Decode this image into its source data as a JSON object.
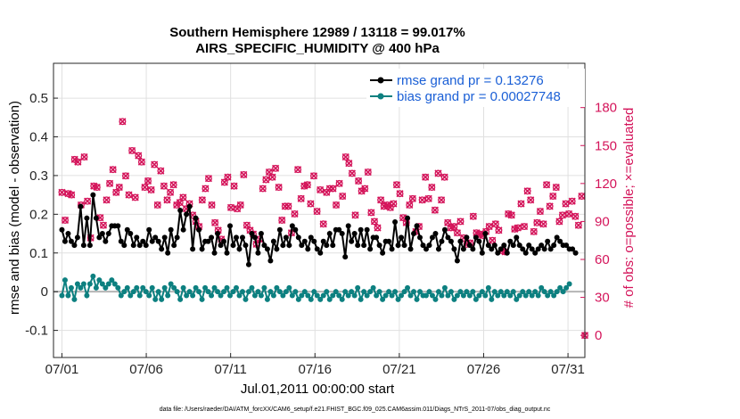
{
  "chart_data": {
    "type": "line",
    "title": "Southern Hemisphere 12989 / 13118 = 99.017%",
    "subtitle": "AIRS_SPECIFIC_HUMIDITY @ 400 hPa",
    "xlabel": "Jul.01,2011 00:00:00 start",
    "ylabel": "rmse and bias (model - observation)",
    "y2label": "# of obs: o=possible; ×=evaluated",
    "footnote": "data file: /Users/raeder/DAI/ATM_forcXX/CAM6_setup/f.e21.FHIST_BGC.f09_025.CAM6assim.011/Diags_NTrS_2011-07/obs_diag_output.nc",
    "xlim": [
      0.5,
      32
    ],
    "ylim": [
      -0.17,
      0.59
    ],
    "y2lim": [
      -17.5,
      215
    ],
    "xticks": [
      1,
      6,
      11,
      16,
      21,
      26,
      31
    ],
    "xtick_labels": [
      "07/01",
      "07/06",
      "07/11",
      "07/16",
      "07/21",
      "07/26",
      "07/31"
    ],
    "yticks": [
      -0.1,
      0,
      0.1,
      0.2,
      0.3,
      0.4,
      0.5
    ],
    "ytick_labels": [
      "-0.1",
      "0",
      "0.1",
      "0.2",
      "0.3",
      "0.4",
      "0.5"
    ],
    "y2ticks": [
      0,
      30,
      60,
      90,
      120,
      150,
      180
    ],
    "y2tick_labels": [
      "0",
      "30",
      "60",
      "90",
      "120",
      "150",
      "180"
    ],
    "grid": true,
    "legend_position": "top-right",
    "colors": {
      "rmse": "#000000",
      "bias": "#0d8080",
      "obs": "#d4145a",
      "zero": "#b4b4b4",
      "grid": "#e0e0e0",
      "legend_text": "#1a5fd6"
    },
    "series": [
      {
        "name": "rmse grand pr = 0.13276",
        "values": [
          0.16,
          0.13,
          0.15,
          0.13,
          0.12,
          0.14,
          0.22,
          0.12,
          0.19,
          0.12,
          0.25,
          0.19,
          0.14,
          0.15,
          0.13,
          0.15,
          0.17,
          0.17,
          0.17,
          0.13,
          0.12,
          0.16,
          0.15,
          0.12,
          0.14,
          0.12,
          0.13,
          0.12,
          0.16,
          0.13,
          0.14,
          0.13,
          0.11,
          0.14,
          0.1,
          0.16,
          0.12,
          0.14,
          0.21,
          0.16,
          0.2,
          0.22,
          0.11,
          0.19,
          0.16,
          0.11,
          0.13,
          0.13,
          0.14,
          0.1,
          0.15,
          0.12,
          0.13,
          0.1,
          0.17,
          0.12,
          0.14,
          0.11,
          0.14,
          0.12,
          0.07,
          0.15,
          0.14,
          0.1,
          0.15,
          0.12,
          0.11,
          0.08,
          0.13,
          0.11,
          0.16,
          0.12,
          0.14,
          0.12,
          0.17,
          0.16,
          0.14,
          0.12,
          0.13,
          0.11,
          0.14,
          0.13,
          0.11,
          0.1,
          0.13,
          0.12,
          0.15,
          0.12,
          0.16,
          0.16,
          0.15,
          0.09,
          0.17,
          0.13,
          0.15,
          0.12,
          0.16,
          0.12,
          0.16,
          0.11,
          0.14,
          0.14,
          0.12,
          0.1,
          0.13,
          0.13,
          0.11,
          0.18,
          0.12,
          0.14,
          0.12,
          0.19,
          0.11,
          0.15,
          0.17,
          0.14,
          0.12,
          0.11,
          0.12,
          0.14,
          0.15,
          0.11,
          0.13,
          0.16,
          0.14,
          0.13,
          0.11,
          0.08,
          0.13,
          0.11,
          0.14,
          0.12,
          0.11,
          0.14,
          0.13,
          0.1,
          0.15,
          0.12,
          0.11,
          0.12,
          0.1,
          0.11,
          0.12,
          0.1,
          0.13,
          0.12,
          0.14,
          0.12,
          0.11,
          0.1,
          0.12,
          0.11,
          0.1,
          0.11,
          0.12,
          0.11,
          0.13,
          0.11,
          0.12,
          0.14,
          0.13,
          0.12,
          0.12,
          0.11,
          0.11,
          0.1
        ]
      },
      {
        "name": "bias grand pr = 0.00027748",
        "values": [
          -0.01,
          0.03,
          -0.01,
          0.01,
          -0.02,
          0.02,
          0.01,
          0.02,
          -0.01,
          0.02,
          0.04,
          0.01,
          0.03,
          0.02,
          0.01,
          0.02,
          0.03,
          0.02,
          0.01,
          -0.01,
          0.0,
          0.01,
          -0.01,
          0.0,
          0.01,
          -0.01,
          0.01,
          0.0,
          -0.01,
          0.01,
          -0.02,
          0.0,
          -0.02,
          0.01,
          -0.01,
          0.02,
          0.01,
          0.0,
          -0.02,
          0.01,
          -0.01,
          0.0,
          -0.01,
          0.01,
          0.0,
          -0.02,
          0.01,
          0.0,
          -0.01,
          0.01,
          0.0,
          -0.01,
          0.0,
          0.01,
          -0.01,
          0.0,
          0.01,
          -0.01,
          0.0,
          -0.02,
          0.0,
          0.01,
          -0.01,
          0.0,
          -0.01,
          0.01,
          -0.02,
          0.0,
          -0.01,
          0.01,
          0.0,
          -0.01,
          0.0,
          0.01,
          -0.01,
          0.0,
          -0.02,
          -0.01,
          0.0,
          -0.01,
          -0.02,
          0.0,
          -0.01,
          -0.02,
          -0.01,
          0.0,
          -0.02,
          -0.01,
          0.0,
          -0.01,
          -0.02,
          0.0,
          -0.01,
          0.0,
          -0.01,
          0.01,
          -0.02,
          0.0,
          -0.01,
          0.0,
          0.01,
          -0.01,
          0.0,
          -0.02,
          -0.01,
          0.0,
          -0.01,
          0.0,
          -0.02,
          -0.01,
          0.0,
          0.01,
          -0.01,
          0.0,
          -0.02,
          0.0,
          -0.01,
          -0.01,
          0.0,
          -0.01,
          -0.02,
          0.0,
          -0.01,
          0.01,
          -0.01,
          0.0,
          -0.02,
          -0.01,
          0.0,
          -0.01,
          0.0,
          -0.01,
          0.0,
          -0.02,
          -0.01,
          0.0,
          -0.01,
          0.01,
          -0.02,
          0.0,
          -0.01,
          0.0,
          -0.01,
          0.0,
          -0.01,
          0.0,
          -0.02,
          -0.01,
          0.0,
          -0.01,
          0.0,
          -0.01,
          0.0,
          -0.01,
          0.01,
          0.0,
          -0.01,
          0.0,
          -0.01,
          0.0,
          0.01,
          0.0,
          0.01,
          0.02
        ]
      }
    ],
    "obs_counts": [
      113,
      91,
      112,
      111,
      139,
      137,
      103,
      141,
      106,
      77,
      118,
      117,
      93,
      87,
      107,
      120,
      131,
      113,
      117,
      169,
      126,
      111,
      146,
      109,
      142,
      137,
      117,
      122,
      115,
      135,
      103,
      130,
      118,
      107,
      113,
      119,
      103,
      105,
      109,
      100,
      104,
      95,
      90,
      86,
      107,
      116,
      124,
      103,
      89,
      83,
      76,
      121,
      125,
      101,
      118,
      100,
      103,
      127,
      87,
      83,
      80,
      72,
      76,
      116,
      123,
      129,
      125,
      132,
      117,
      91,
      102,
      102,
      81,
      96,
      131,
      108,
      118,
      119,
      104,
      126,
      98,
      115,
      88,
      113,
      116,
      116,
      103,
      120,
      110,
      141,
      136,
      128,
      95,
      122,
      114,
      116,
      129,
      97,
      90,
      85,
      107,
      102,
      103,
      101,
      104,
      119,
      112,
      93,
      89,
      103,
      108,
      82,
      86,
      107,
      125,
      108,
      117,
      99,
      128,
      107,
      125,
      89,
      85,
      86,
      81,
      90,
      77,
      72,
      73,
      94,
      81,
      80,
      79,
      82,
      86,
      75,
      88,
      83,
      67,
      66,
      96,
      95,
      84,
      85,
      104,
      86,
      114,
      107,
      82,
      89,
      98,
      88,
      119,
      102,
      110,
      117,
      90,
      95,
      104,
      96,
      106,
      94,
      87,
      110,
      0
    ],
    "legend": [
      "rmse grand pr = 0.13276",
      "bias grand pr = 0.00027748"
    ]
  }
}
